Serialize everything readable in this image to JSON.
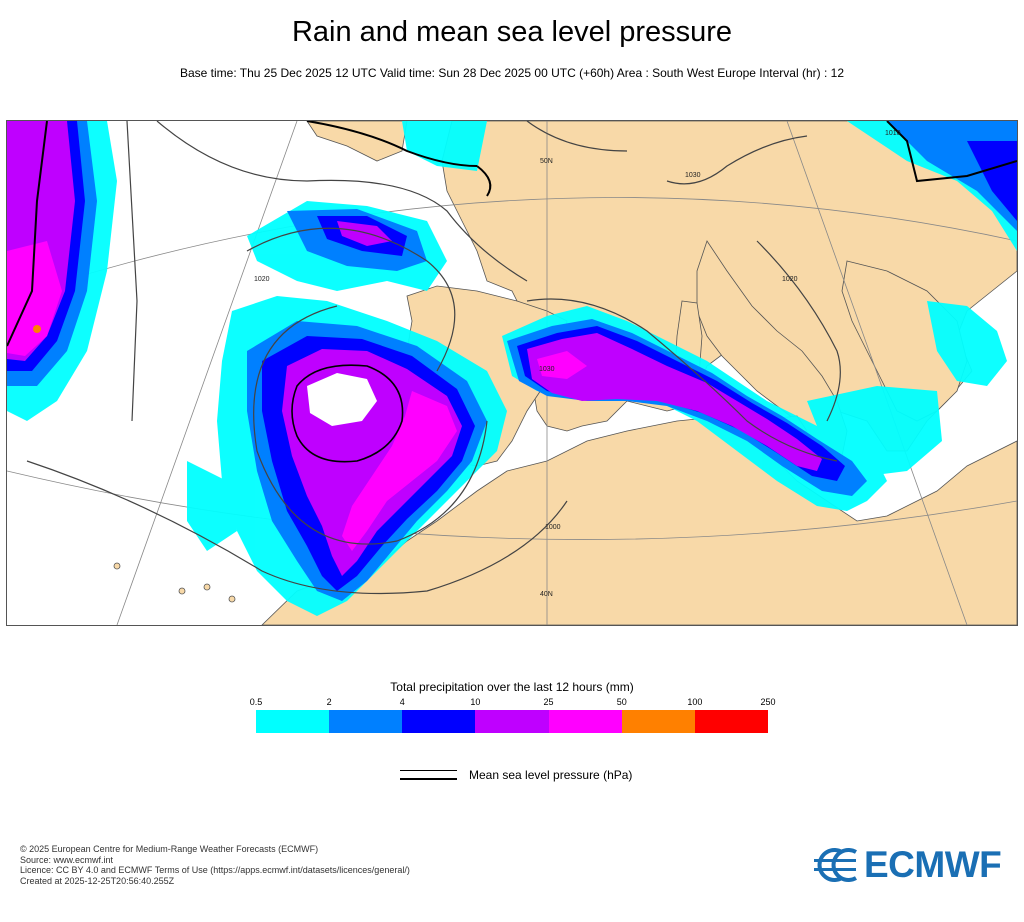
{
  "header": {
    "title": "Rain and mean sea level pressure",
    "subtitle": "Base time: Thu 25 Dec 2025 12 UTC Valid time: Sun 28 Dec 2025 00 UTC (+60h) Area : South West Europe Interval (hr) : 12"
  },
  "map": {
    "isobar_labels": [
      "1030",
      "1020",
      "1010",
      "1020",
      "1000",
      "1030"
    ],
    "lat_labels": [
      "50N",
      "40N"
    ]
  },
  "legend": {
    "title": "Total precipitation over the last 12 hours (mm)",
    "ticks": [
      "0.5",
      "2",
      "4",
      "10",
      "25",
      "50",
      "100",
      "250"
    ],
    "colors": [
      "#00ffff",
      "#0080ff",
      "#0000ff",
      "#bf00ff",
      "#ff00ff",
      "#ff8000",
      "#ff0000"
    ],
    "mslp_label": "Mean sea level pressure (hPa)"
  },
  "footer": {
    "line1": "© 2025 European Centre for Medium-Range Weather Forecasts (ECMWF)",
    "line2": "Source: www.ecmwf.int",
    "line3": "Licence: CC BY 4.0 and ECMWF Terms of Use (https://apps.ecmwf.int/datasets/licences/general/)",
    "line4": "Created at 2025-12-25T20:56:40.255Z"
  },
  "logo": {
    "text": "ECMWF",
    "color": "#1a6fb4"
  }
}
